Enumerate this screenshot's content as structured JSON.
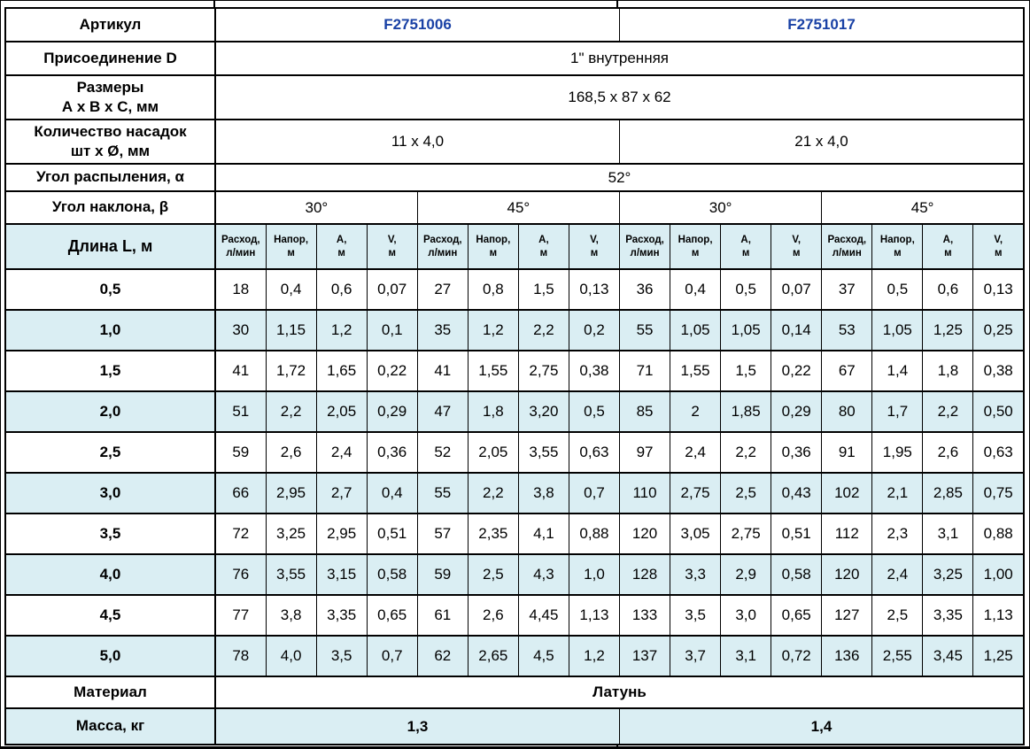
{
  "page": {
    "stripe_color": "#daeef3",
    "article_color": "#1941a5",
    "border_color": "#000000",
    "background": "#ffffff"
  },
  "table": {
    "labels": {
      "article": "Артикул",
      "connection": "Присоединение D",
      "dimensions": "Размеры\nА х В х С, мм",
      "nozzles": "Количество насадок\nшт х Ø, мм",
      "spray_angle": "Угол распыления, α",
      "tilt_angle": "Угол наклона, β",
      "length": "Длина L, м",
      "material": "Материал",
      "mass": "Масса, кг"
    },
    "values": {
      "articles": [
        "F2751006",
        "F2751017"
      ],
      "connection": "1\" внутренняя",
      "dimensions": "168,5 x 87 x 62",
      "nozzles": [
        "11 х 4,0",
        "21 х 4,0"
      ],
      "spray_angle": "52°",
      "tilt_angles": [
        "30°",
        "45°",
        "30°",
        "45°"
      ],
      "material": "Латунь",
      "masses": [
        "1,3",
        "1,4"
      ]
    },
    "subheaders": [
      "Расход,\nл/мин",
      "Напор,\nм",
      "А,\nм",
      "V,\nм"
    ],
    "rows": [
      {
        "length": "0,5",
        "values": [
          "18",
          "0,4",
          "0,6",
          "0,07",
          "27",
          "0,8",
          "1,5",
          "0,13",
          "36",
          "0,4",
          "0,5",
          "0,07",
          "37",
          "0,5",
          "0,6",
          "0,13"
        ]
      },
      {
        "length": "1,0",
        "values": [
          "30",
          "1,15",
          "1,2",
          "0,1",
          "35",
          "1,2",
          "2,2",
          "0,2",
          "55",
          "1,05",
          "1,05",
          "0,14",
          "53",
          "1,05",
          "1,25",
          "0,25"
        ]
      },
      {
        "length": "1,5",
        "values": [
          "41",
          "1,72",
          "1,65",
          "0,22",
          "41",
          "1,55",
          "2,75",
          "0,38",
          "71",
          "1,55",
          "1,5",
          "0,22",
          "67",
          "1,4",
          "1,8",
          "0,38"
        ]
      },
      {
        "length": "2,0",
        "values": [
          "51",
          "2,2",
          "2,05",
          "0,29",
          "47",
          "1,8",
          "3,20",
          "0,5",
          "85",
          "2",
          "1,85",
          "0,29",
          "80",
          "1,7",
          "2,2",
          "0,50"
        ]
      },
      {
        "length": "2,5",
        "values": [
          "59",
          "2,6",
          "2,4",
          "0,36",
          "52",
          "2,05",
          "3,55",
          "0,63",
          "97",
          "2,4",
          "2,2",
          "0,36",
          "91",
          "1,95",
          "2,6",
          "0,63"
        ]
      },
      {
        "length": "3,0",
        "values": [
          "66",
          "2,95",
          "2,7",
          "0,4",
          "55",
          "2,2",
          "3,8",
          "0,7",
          "110",
          "2,75",
          "2,5",
          "0,43",
          "102",
          "2,1",
          "2,85",
          "0,75"
        ]
      },
      {
        "length": "3,5",
        "values": [
          "72",
          "3,25",
          "2,95",
          "0,51",
          "57",
          "2,35",
          "4,1",
          "0,88",
          "120",
          "3,05",
          "2,75",
          "0,51",
          "112",
          "2,3",
          "3,1",
          "0,88"
        ]
      },
      {
        "length": "4,0",
        "values": [
          "76",
          "3,55",
          "3,15",
          "0,58",
          "59",
          "2,5",
          "4,3",
          "1,0",
          "128",
          "3,3",
          "2,9",
          "0,58",
          "120",
          "2,4",
          "3,25",
          "1,00"
        ]
      },
      {
        "length": "4,5",
        "values": [
          "77",
          "3,8",
          "3,35",
          "0,65",
          "61",
          "2,6",
          "4,45",
          "1,13",
          "133",
          "3,5",
          "3,0",
          "0,65",
          "127",
          "2,5",
          "3,35",
          "1,13"
        ]
      },
      {
        "length": "5,0",
        "values": [
          "78",
          "4,0",
          "3,5",
          "0,7",
          "62",
          "2,65",
          "4,5",
          "1,2",
          "137",
          "3,7",
          "3,1",
          "0,72",
          "136",
          "2,55",
          "3,45",
          "1,25"
        ]
      }
    ]
  }
}
